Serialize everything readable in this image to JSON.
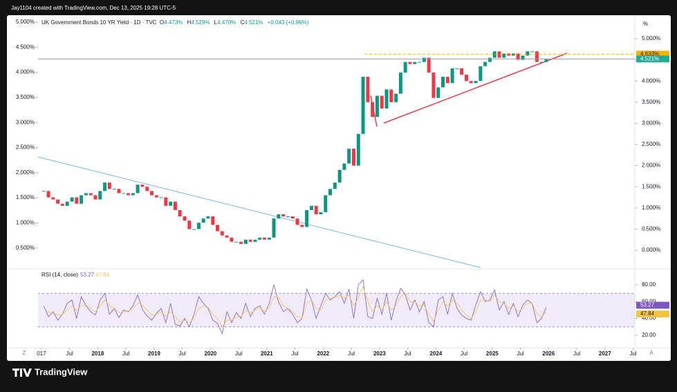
{
  "header": {
    "credit": "Jay1104 created with TradingView.com, Dec 13, 2025 19:28 UTC-5"
  },
  "footer": {
    "brand": "TradingView"
  },
  "ui": {
    "scale_unit": "%",
    "zoom_button": "Z",
    "auto_button": "A"
  },
  "chart_data": [
    {
      "type": "candlestick",
      "title": "UK Government Bonds 10 YR Yield · 1D · TVC",
      "legend": [
        {
          "key": "O",
          "value": "4.473%"
        },
        {
          "key": "H",
          "value": "4.529%"
        },
        {
          "key": "L",
          "value": "4.470%"
        },
        {
          "key": "C",
          "value": "4.521%"
        }
      ],
      "change": "+0.043 (+0.96%)",
      "x": [
        2017.042,
        2017.125,
        2017.208,
        2017.292,
        2017.375,
        2017.458,
        2017.542,
        2017.625,
        2017.708,
        2017.792,
        2017.875,
        2017.958,
        2018.042,
        2018.125,
        2018.208,
        2018.292,
        2018.375,
        2018.458,
        2018.542,
        2018.625,
        2018.708,
        2018.792,
        2018.875,
        2018.958,
        2019.042,
        2019.125,
        2019.208,
        2019.292,
        2019.375,
        2019.458,
        2019.542,
        2019.625,
        2019.708,
        2019.792,
        2019.875,
        2019.958,
        2020.042,
        2020.125,
        2020.208,
        2020.292,
        2020.375,
        2020.458,
        2020.542,
        2020.625,
        2020.708,
        2020.792,
        2020.875,
        2020.958,
        2021.042,
        2021.125,
        2021.208,
        2021.292,
        2021.375,
        2021.458,
        2021.542,
        2021.625,
        2021.708,
        2021.792,
        2021.875,
        2021.958,
        2022.042,
        2022.125,
        2022.208,
        2022.292,
        2022.375,
        2022.458,
        2022.542,
        2022.625,
        2022.708,
        2022.792,
        2022.875,
        2022.958,
        2023.042,
        2023.125,
        2023.208,
        2023.292,
        2023.375,
        2023.458,
        2023.542,
        2023.625,
        2023.708,
        2023.792,
        2023.875,
        2023.958,
        2024.042,
        2024.125,
        2024.208,
        2024.292,
        2024.375,
        2024.458,
        2024.542,
        2024.625,
        2024.708,
        2024.792,
        2024.875,
        2024.958,
        2025.042,
        2025.125,
        2025.208,
        2025.292,
        2025.375,
        2025.458,
        2025.542,
        2025.625,
        2025.708,
        2025.792,
        2025.875,
        2025.958
      ],
      "values": [
        1.4,
        1.25,
        1.2,
        1.1,
        1.05,
        1.15,
        1.25,
        1.1,
        1.3,
        1.35,
        1.3,
        1.2,
        1.4,
        1.6,
        1.45,
        1.45,
        1.35,
        1.35,
        1.3,
        1.35,
        1.55,
        1.5,
        1.4,
        1.3,
        1.25,
        1.25,
        1.05,
        1.15,
        0.95,
        0.8,
        0.7,
        0.5,
        0.5,
        0.65,
        0.75,
        0.8,
        0.6,
        0.45,
        0.35,
        0.3,
        0.2,
        0.2,
        0.15,
        0.25,
        0.2,
        0.25,
        0.3,
        0.25,
        0.3,
        0.75,
        0.85,
        0.8,
        0.8,
        0.75,
        0.6,
        0.55,
        0.95,
        1.05,
        0.85,
        0.9,
        1.3,
        1.45,
        1.6,
        1.9,
        2.05,
        2.4,
        2.0,
        2.75,
        4.1,
        3.5,
        3.15,
        3.65,
        3.35,
        3.8,
        3.5,
        3.7,
        4.2,
        4.45,
        4.4,
        4.45,
        4.45,
        4.55,
        4.2,
        3.6,
        3.85,
        4.1,
        3.95,
        4.3,
        4.3,
        4.15,
        4.0,
        3.95,
        4.0,
        4.35,
        4.45,
        4.55,
        4.7,
        4.55,
        4.65,
        4.6,
        4.65,
        4.5,
        4.6,
        4.7,
        4.7,
        4.45,
        4.45,
        4.52
      ],
      "up_color": "#089981",
      "down_color": "#f23645",
      "xlim": [
        2016.94,
        2027.53
      ],
      "xticks": [
        {
          "value": 2017,
          "label": "017"
        },
        {
          "value": 2017.5,
          "label": "Jul"
        },
        2018,
        {
          "value": 2018.5,
          "label": "Jul"
        },
        2019,
        {
          "value": 2019.5,
          "label": "Jul"
        },
        2020,
        {
          "value": 2020.5,
          "label": "Jul"
        },
        2021,
        {
          "value": 2021.5,
          "label": "Jul"
        },
        2022,
        {
          "value": 2022.5,
          "label": "Jul"
        },
        2023,
        {
          "value": 2023.5,
          "label": "Jul"
        },
        2024,
        {
          "value": 2024.5,
          "label": "Jul"
        },
        2025,
        {
          "value": 2025.5,
          "label": "Jul"
        },
        2026,
        {
          "value": 2026.5,
          "label": "Jul"
        },
        2027,
        {
          "value": 2027.5,
          "label": "Jul"
        }
      ],
      "ylim": [
        -0.376,
        5.457
      ],
      "yticks": [
        {
          "value": 0,
          "label": "0.000%"
        },
        {
          "value": 0.5,
          "label": "0.500%"
        },
        {
          "value": 1,
          "label": "1.000%"
        },
        {
          "value": 1.5,
          "label": "1.500%"
        },
        {
          "value": 2,
          "label": "2.000%"
        },
        {
          "value": 2.5,
          "label": "2.500%"
        },
        {
          "value": 3,
          "label": "3.000%"
        },
        {
          "value": 3.5,
          "label": "3.500%"
        },
        {
          "value": 4,
          "label": "4.000%"
        },
        {
          "value": 4.5,
          "label": "4.500%"
        },
        {
          "value": 5,
          "label": "5.000%"
        }
      ],
      "y2lim": [
        0.138,
        5.055
      ],
      "y2ticks": [
        {
          "value": 0.5,
          "label": "0.500%"
        },
        {
          "value": 1,
          "label": "1.000%"
        },
        {
          "value": 1.5,
          "label": "1.500%"
        },
        {
          "value": 2,
          "label": "2.000%"
        },
        {
          "value": 2.5,
          "label": "2.500%"
        },
        {
          "value": 3,
          "label": "3.000%"
        },
        {
          "value": 3.5,
          "label": "3.500%"
        },
        {
          "value": 4,
          "label": "4.000%"
        },
        {
          "value": 4.5,
          "label": "4.500%"
        },
        {
          "value": 5,
          "label": "5.000%"
        }
      ],
      "price_labels": [
        {
          "value": 4.633,
          "label": "4.633%",
          "color": "#f5b400"
        },
        {
          "value": 4.521,
          "label": "4.521%",
          "color": "#22ab94"
        }
      ]
    },
    {
      "type": "line",
      "title": "RSI (14, close)",
      "x": [
        2017.042,
        2017.125,
        2017.208,
        2017.292,
        2017.375,
        2017.458,
        2017.542,
        2017.625,
        2017.708,
        2017.792,
        2017.875,
        2017.958,
        2018.042,
        2018.125,
        2018.208,
        2018.292,
        2018.375,
        2018.458,
        2018.542,
        2018.625,
        2018.708,
        2018.792,
        2018.875,
        2018.958,
        2019.042,
        2019.125,
        2019.208,
        2019.292,
        2019.375,
        2019.458,
        2019.542,
        2019.625,
        2019.708,
        2019.792,
        2019.875,
        2019.958,
        2020.042,
        2020.125,
        2020.208,
        2020.292,
        2020.375,
        2020.458,
        2020.542,
        2020.625,
        2020.708,
        2020.792,
        2020.875,
        2020.958,
        2021.042,
        2021.125,
        2021.208,
        2021.292,
        2021.375,
        2021.458,
        2021.542,
        2021.625,
        2021.708,
        2021.792,
        2021.875,
        2021.958,
        2022.042,
        2022.125,
        2022.208,
        2022.292,
        2022.375,
        2022.458,
        2022.542,
        2022.625,
        2022.708,
        2022.792,
        2022.875,
        2022.958,
        2023.042,
        2023.125,
        2023.208,
        2023.292,
        2023.375,
        2023.458,
        2023.542,
        2023.625,
        2023.708,
        2023.792,
        2023.875,
        2023.958,
        2024.042,
        2024.125,
        2024.208,
        2024.292,
        2024.375,
        2024.458,
        2024.542,
        2024.625,
        2024.708,
        2024.792,
        2024.875,
        2024.958,
        2025.042,
        2025.125,
        2025.208,
        2025.292,
        2025.375,
        2025.458,
        2025.542,
        2025.625,
        2025.708,
        2025.792,
        2025.875,
        2025.958
      ],
      "series": [
        {
          "color": "#7e57c2",
          "values": [
            55,
            42,
            48,
            38,
            45,
            58,
            62,
            40,
            66,
            55,
            48,
            44,
            62,
            70,
            45,
            52,
            41,
            50,
            48,
            55,
            68,
            51,
            43,
            38,
            46,
            52,
            35,
            58,
            33,
            31,
            40,
            30,
            45,
            66,
            58,
            52,
            38,
            34,
            22,
            48,
            35,
            47,
            40,
            58,
            42,
            52,
            55,
            45,
            58,
            80,
            60,
            48,
            52,
            45,
            35,
            40,
            75,
            62,
            40,
            55,
            70,
            62,
            66,
            72,
            58,
            75,
            40,
            80,
            86,
            42,
            40,
            64,
            45,
            70,
            38,
            60,
            76,
            68,
            50,
            62,
            48,
            60,
            35,
            30,
            62,
            66,
            45,
            70,
            52,
            44,
            40,
            38,
            56,
            72,
            60,
            62,
            74,
            50,
            60,
            45,
            58,
            42,
            56,
            62,
            58,
            35,
            40,
            53.27
          ]
        },
        {
          "color": "#f5c542",
          "values": [
            52,
            48,
            47,
            44,
            45,
            50,
            55,
            50,
            55,
            56,
            52,
            48,
            55,
            62,
            55,
            52,
            47,
            48,
            49,
            52,
            58,
            56,
            50,
            44,
            45,
            48,
            43,
            48,
            42,
            36,
            38,
            35,
            40,
            52,
            55,
            53,
            45,
            40,
            30,
            38,
            38,
            42,
            42,
            50,
            46,
            50,
            52,
            49,
            52,
            66,
            65,
            55,
            52,
            48,
            42,
            40,
            58,
            62,
            52,
            50,
            62,
            64,
            65,
            68,
            64,
            68,
            55,
            65,
            78,
            60,
            48,
            55,
            50,
            60,
            50,
            55,
            66,
            70,
            60,
            60,
            55,
            56,
            45,
            36,
            50,
            60,
            55,
            62,
            58,
            50,
            44,
            40,
            48,
            62,
            62,
            60,
            68,
            60,
            58,
            52,
            55,
            48,
            52,
            58,
            58,
            46,
            42,
            47.84
          ]
        }
      ],
      "band": [
        30,
        70
      ],
      "xlim": [
        2016.94,
        2027.53
      ],
      "ylim": [
        7.6,
        96.5
      ],
      "yticks": [
        {
          "value": 20,
          "label": "20.00"
        },
        {
          "value": 40,
          "label": "40.00"
        },
        {
          "value": 60,
          "label": "60.00"
        },
        {
          "value": 80,
          "label": "80.00"
        }
      ]
    }
  ]
}
